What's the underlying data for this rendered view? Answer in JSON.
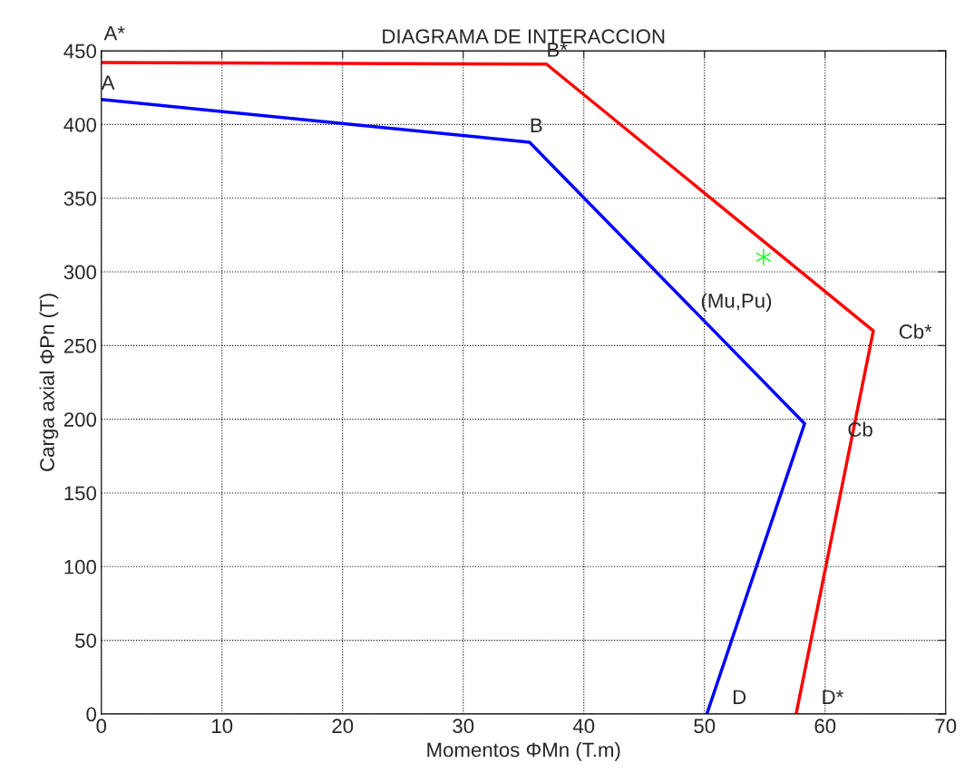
{
  "chart_data": {
    "type": "line",
    "title": "DIAGRAMA DE INTERACCION",
    "xlabel": "Momentos ΦMn (T.m)",
    "ylabel": "Carga axial ΦPn (T)",
    "xlim": [
      0,
      70
    ],
    "xticks": [
      0,
      10,
      20,
      30,
      40,
      50,
      60,
      70
    ],
    "ylim": [
      0,
      450
    ],
    "yticks": [
      0,
      50,
      100,
      150,
      200,
      250,
      300,
      350,
      400,
      450
    ],
    "grid": true,
    "legend": false,
    "series": [
      {
        "color": "#ff0000",
        "x": [
          0,
          36.9,
          64.0,
          57.6
        ],
        "values": [
          442,
          441,
          260,
          0
        ]
      },
      {
        "color": "#0000ff",
        "x": [
          0,
          35.5,
          58.3,
          50.2
        ],
        "values": [
          417,
          388,
          197,
          0
        ]
      },
      {
        "type": "scatter",
        "marker": "cross",
        "color": "#00ff00",
        "x": [
          54.9
        ],
        "values": [
          310
        ]
      }
    ],
    "annotations": [
      {
        "text": "A*",
        "x": 0,
        "y": 442
      },
      {
        "text": "B*",
        "x": 36.9,
        "y": 441
      },
      {
        "text": "A",
        "x": 0,
        "y": 417
      },
      {
        "text": "B",
        "x": 35.5,
        "y": 388
      },
      {
        "text": "(Mu,Pu)",
        "x": 54.9,
        "y": 310
      },
      {
        "text": "Cb*",
        "x": 64.0,
        "y": 260
      },
      {
        "text": "Cb",
        "x": 58.3,
        "y": 197
      },
      {
        "text": "D",
        "x": 50.2,
        "y": 0
      },
      {
        "text": "D*",
        "x": 57.6,
        "y": 0
      }
    ]
  }
}
